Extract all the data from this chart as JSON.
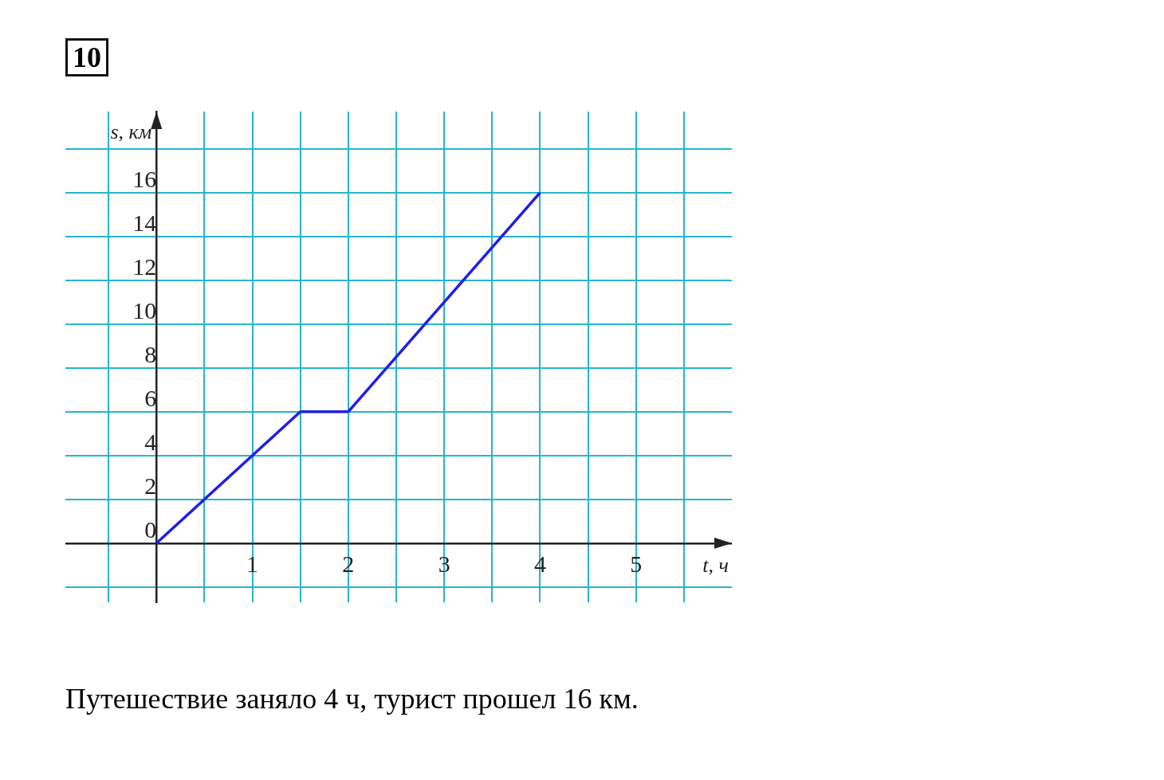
{
  "chart_data": {
    "type": "line",
    "title": "10",
    "xlabel": "t, ч",
    "ylabel": "s, км",
    "x": [
      0,
      1.5,
      2,
      4
    ],
    "series": [
      {
        "color": "#1f1fe6",
        "values": [
          0,
          6,
          6,
          16
        ]
      }
    ],
    "xlim": [
      -0.95,
      6
    ],
    "xticks": [
      {
        "value": -0.5,
        "label": null
      },
      {
        "value": 0,
        "label": null
      },
      {
        "value": 0.5,
        "label": null
      },
      1,
      {
        "value": 1.5,
        "label": null
      },
      2,
      {
        "value": 2.5,
        "label": null
      },
      3,
      {
        "value": 3.5,
        "label": null
      },
      4,
      {
        "value": 4.5,
        "label": null
      },
      5,
      {
        "value": 5.5,
        "label": null
      }
    ],
    "ylim": [
      -2.7,
      19.7
    ],
    "yticks": [
      {
        "value": -2,
        "label": null
      },
      0,
      2,
      4,
      6,
      8,
      10,
      12,
      14,
      16,
      {
        "value": 18,
        "label": null
      }
    ],
    "grid": true,
    "marker": "none",
    "line_style": "solid",
    "legend": false,
    "annotations": [
      "Путешествие заняло 4 ч, турист прошел 16 км."
    ]
  }
}
